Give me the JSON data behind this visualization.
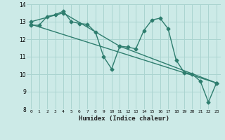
{
  "title": "",
  "xlabel": "Humidex (Indice chaleur)",
  "ylabel": "",
  "xlim": [
    -0.5,
    23.5
  ],
  "ylim": [
    8,
    14
  ],
  "yticks": [
    8,
    9,
    10,
    11,
    12,
    13,
    14
  ],
  "xticks": [
    0,
    1,
    2,
    3,
    4,
    5,
    6,
    7,
    8,
    9,
    10,
    11,
    12,
    13,
    14,
    15,
    16,
    17,
    18,
    19,
    20,
    21,
    22,
    23
  ],
  "xtick_labels": [
    "0",
    "1",
    "2",
    "3",
    "4",
    "5",
    "6",
    "7",
    "8",
    "9",
    "10",
    "11",
    "12",
    "13",
    "14",
    "15",
    "16",
    "17",
    "18",
    "19",
    "20",
    "21",
    "22",
    "23"
  ],
  "background_color": "#cceae7",
  "grid_color": "#aad4d0",
  "line_color": "#2e7d6e",
  "line_width": 1.0,
  "marker": "D",
  "marker_size": 2.5,
  "series": [
    {
      "x": [
        0,
        1,
        2,
        3,
        4,
        5,
        6,
        7,
        8,
        9,
        10,
        11,
        12,
        13,
        14,
        15,
        16,
        17,
        18,
        19,
        20,
        21,
        22,
        23
      ],
      "y": [
        12.8,
        12.8,
        13.3,
        13.4,
        13.6,
        13.0,
        12.9,
        12.85,
        12.4,
        11.0,
        10.3,
        11.6,
        11.55,
        11.45,
        12.5,
        13.1,
        13.2,
        12.6,
        10.8,
        10.1,
        10.0,
        9.6,
        8.4,
        9.5
      ]
    },
    {
      "x": [
        0,
        4,
        11,
        23
      ],
      "y": [
        13.0,
        13.5,
        11.6,
        9.5
      ]
    },
    {
      "x": [
        0,
        23
      ],
      "y": [
        12.85,
        9.5
      ]
    }
  ]
}
